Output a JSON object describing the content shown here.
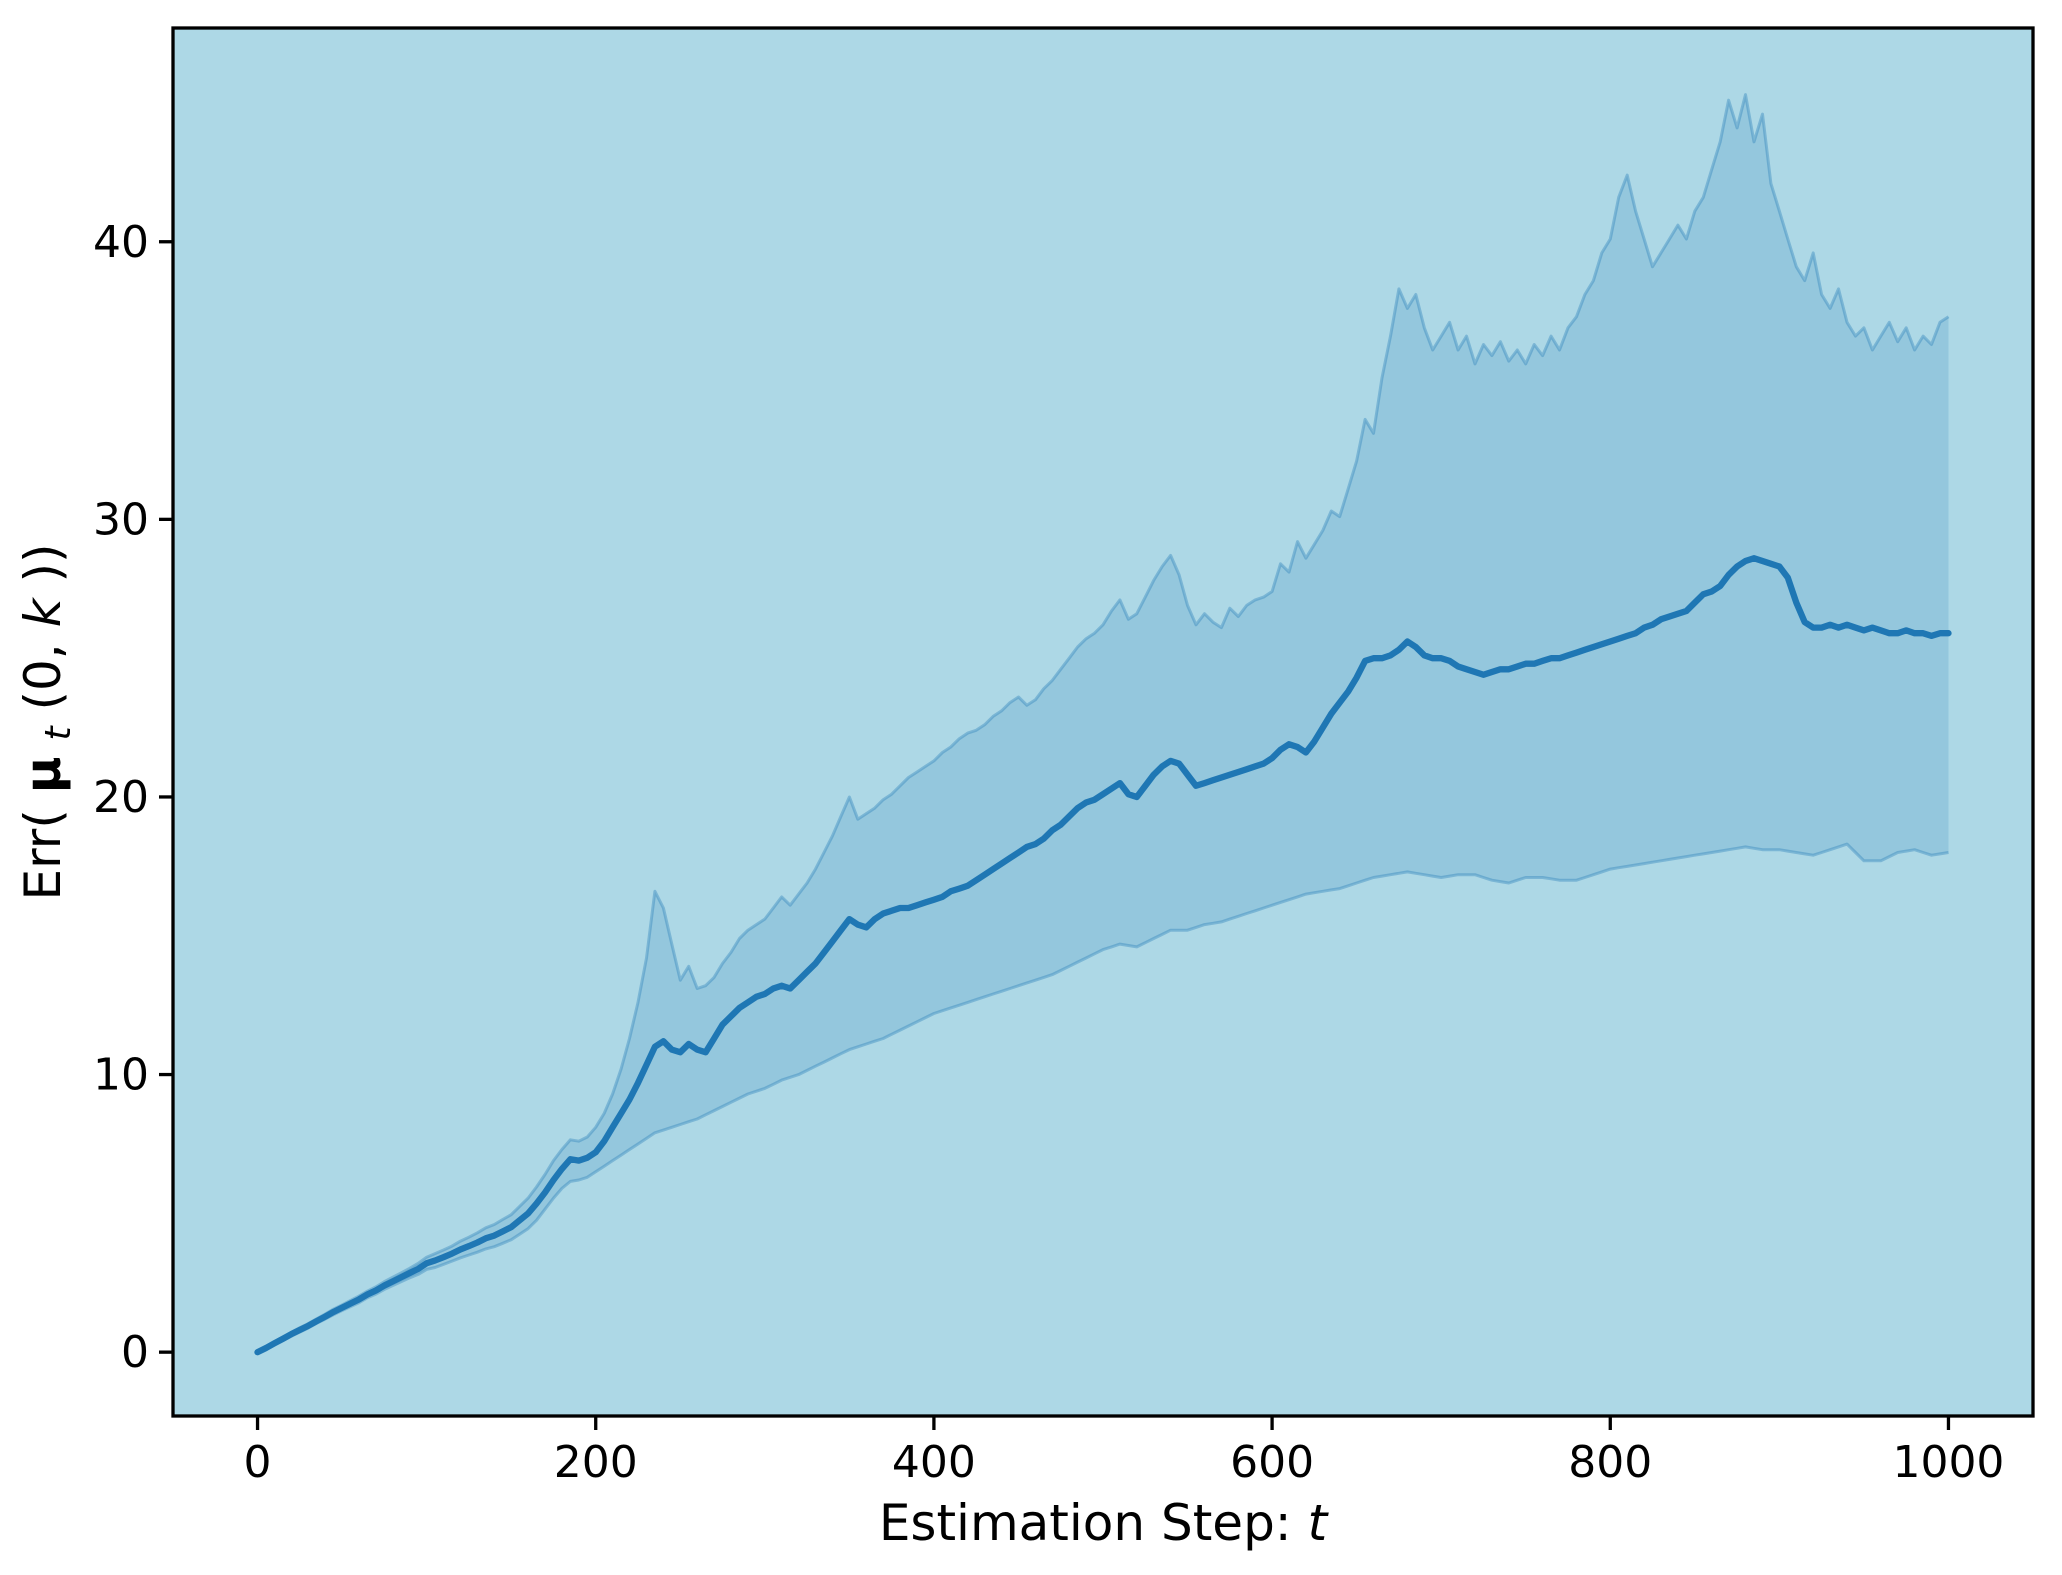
{
  "chart_data": {
    "type": "line",
    "title": "",
    "xlabel_parts": [
      {
        "text": "Estimation Step: ",
        "style": "regular"
      },
      {
        "text": "t",
        "style": "italic"
      }
    ],
    "ylabel_parts": [
      {
        "text": "Err(",
        "style": "regular"
      },
      {
        "text": "μ",
        "style": "bold"
      },
      {
        "text": "t",
        "style": "subscript-italic"
      },
      {
        "text": "(0, ",
        "style": "regular"
      },
      {
        "text": "k",
        "style": "italic"
      },
      {
        "text": "))",
        "style": "regular"
      }
    ],
    "xlim": [
      -50,
      1050
    ],
    "ylim": [
      -2.3,
      47.7
    ],
    "xticks": [
      0,
      200,
      400,
      600,
      800,
      1000
    ],
    "yticks": [
      0,
      10,
      20,
      30,
      40
    ],
    "grid": false,
    "legend": "none",
    "x": [
      0,
      5,
      10,
      15,
      20,
      25,
      30,
      35,
      40,
      45,
      50,
      55,
      60,
      65,
      70,
      75,
      80,
      85,
      90,
      95,
      100,
      105,
      110,
      115,
      120,
      125,
      130,
      135,
      140,
      145,
      150,
      155,
      160,
      165,
      170,
      175,
      180,
      185,
      190,
      195,
      200,
      205,
      210,
      215,
      220,
      225,
      230,
      235,
      240,
      245,
      250,
      255,
      260,
      265,
      270,
      275,
      280,
      285,
      290,
      295,
      300,
      305,
      310,
      315,
      320,
      325,
      330,
      335,
      340,
      345,
      350,
      355,
      360,
      365,
      370,
      375,
      380,
      385,
      390,
      395,
      400,
      405,
      410,
      415,
      420,
      425,
      430,
      435,
      440,
      445,
      450,
      455,
      460,
      465,
      470,
      475,
      480,
      485,
      490,
      495,
      500,
      505,
      510,
      515,
      520,
      525,
      530,
      535,
      540,
      545,
      550,
      555,
      560,
      565,
      570,
      575,
      580,
      585,
      590,
      595,
      600,
      605,
      610,
      615,
      620,
      625,
      630,
      635,
      640,
      645,
      650,
      655,
      660,
      665,
      670,
      675,
      680,
      685,
      690,
      695,
      700,
      705,
      710,
      715,
      720,
      725,
      730,
      735,
      740,
      745,
      750,
      755,
      760,
      765,
      770,
      775,
      780,
      785,
      790,
      795,
      800,
      805,
      810,
      815,
      820,
      825,
      830,
      835,
      840,
      845,
      850,
      855,
      860,
      865,
      870,
      875,
      880,
      885,
      890,
      895,
      900,
      905,
      910,
      915,
      920,
      925,
      930,
      935,
      940,
      945,
      950,
      955,
      960,
      965,
      970,
      975,
      980,
      985,
      990,
      995,
      1000
    ],
    "series": [
      {
        "name": "mean_error",
        "values": [
          0,
          0.15,
          0.32,
          0.48,
          0.65,
          0.8,
          0.95,
          1.12,
          1.28,
          1.45,
          1.6,
          1.75,
          1.9,
          2.08,
          2.22,
          2.4,
          2.55,
          2.7,
          2.85,
          3.0,
          3.2,
          3.3,
          3.42,
          3.55,
          3.7,
          3.82,
          3.95,
          4.1,
          4.2,
          4.35,
          4.5,
          4.75,
          5.0,
          5.35,
          5.75,
          6.2,
          6.6,
          6.95,
          6.9,
          7.0,
          7.2,
          7.6,
          8.1,
          8.6,
          9.1,
          9.7,
          10.35,
          11.0,
          11.2,
          10.9,
          10.8,
          11.1,
          10.9,
          10.8,
          11.3,
          11.8,
          12.1,
          12.4,
          12.6,
          12.8,
          12.9,
          13.1,
          13.2,
          13.1,
          13.4,
          13.7,
          14.0,
          14.4,
          14.8,
          15.2,
          15.6,
          15.4,
          15.3,
          15.6,
          15.8,
          15.9,
          16.0,
          16.0,
          16.1,
          16.2,
          16.3,
          16.4,
          16.6,
          16.7,
          16.8,
          17.0,
          17.2,
          17.4,
          17.6,
          17.8,
          18.0,
          18.2,
          18.3,
          18.5,
          18.8,
          19.0,
          19.3,
          19.6,
          19.8,
          19.9,
          20.1,
          20.3,
          20.5,
          20.1,
          20.0,
          20.4,
          20.8,
          21.1,
          21.3,
          21.2,
          20.8,
          20.4,
          20.5,
          20.6,
          20.7,
          20.8,
          20.9,
          21.0,
          21.1,
          21.2,
          21.4,
          21.7,
          21.9,
          21.8,
          21.6,
          22.0,
          22.5,
          23.0,
          23.4,
          23.8,
          24.3,
          24.9,
          25.0,
          25.0,
          25.1,
          25.3,
          25.6,
          25.4,
          25.1,
          25.0,
          25.0,
          24.9,
          24.7,
          24.6,
          24.5,
          24.4,
          24.5,
          24.6,
          24.6,
          24.7,
          24.8,
          24.8,
          24.9,
          25.0,
          25.0,
          25.1,
          25.2,
          25.3,
          25.4,
          25.5,
          25.6,
          25.7,
          25.8,
          25.9,
          26.1,
          26.2,
          26.4,
          26.5,
          26.6,
          26.7,
          27.0,
          27.3,
          27.4,
          27.6,
          28.0,
          28.3,
          28.5,
          28.6,
          28.5,
          28.4,
          28.3,
          27.9,
          27.0,
          26.3,
          26.1,
          26.1,
          26.2,
          26.1,
          26.2,
          26.1,
          26.0,
          26.1,
          26.0,
          25.9,
          25.9,
          26.0,
          25.9,
          25.9,
          25.8,
          25.9,
          25.9
        ]
      },
      {
        "name": "band_upper",
        "values": [
          0.05,
          0.2,
          0.38,
          0.55,
          0.72,
          0.88,
          1.03,
          1.2,
          1.37,
          1.55,
          1.7,
          1.86,
          2.02,
          2.2,
          2.35,
          2.54,
          2.7,
          2.86,
          3.02,
          3.2,
          3.42,
          3.55,
          3.68,
          3.82,
          4.0,
          4.14,
          4.3,
          4.48,
          4.6,
          4.78,
          4.95,
          5.25,
          5.55,
          5.95,
          6.4,
          6.9,
          7.3,
          7.65,
          7.6,
          7.75,
          8.1,
          8.6,
          9.3,
          10.2,
          11.3,
          12.6,
          14.2,
          16.6,
          16.0,
          14.7,
          13.4,
          13.9,
          13.1,
          13.2,
          13.5,
          14.0,
          14.4,
          14.9,
          15.2,
          15.4,
          15.6,
          16.0,
          16.4,
          16.1,
          16.5,
          16.9,
          17.4,
          18.0,
          18.6,
          19.3,
          20.0,
          19.2,
          19.4,
          19.6,
          19.9,
          20.1,
          20.4,
          20.7,
          20.9,
          21.1,
          21.3,
          21.6,
          21.8,
          22.1,
          22.3,
          22.4,
          22.6,
          22.9,
          23.1,
          23.4,
          23.6,
          23.3,
          23.5,
          23.9,
          24.2,
          24.6,
          25.0,
          25.4,
          25.7,
          25.9,
          26.2,
          26.7,
          27.1,
          26.4,
          26.6,
          27.2,
          27.8,
          28.3,
          28.7,
          28.0,
          26.9,
          26.2,
          26.6,
          26.3,
          26.1,
          26.8,
          26.5,
          26.9,
          27.1,
          27.2,
          27.4,
          28.4,
          28.1,
          29.2,
          28.6,
          29.1,
          29.6,
          30.3,
          30.1,
          31.1,
          32.1,
          33.6,
          33.1,
          35.1,
          36.6,
          38.3,
          37.6,
          38.1,
          36.9,
          36.1,
          36.6,
          37.1,
          36.1,
          36.6,
          35.6,
          36.3,
          35.9,
          36.4,
          35.7,
          36.1,
          35.6,
          36.3,
          35.9,
          36.6,
          36.1,
          36.9,
          37.3,
          38.1,
          38.6,
          39.6,
          40.1,
          41.6,
          42.4,
          41.1,
          40.1,
          39.1,
          39.6,
          40.1,
          40.6,
          40.1,
          41.1,
          41.6,
          42.6,
          43.6,
          45.1,
          44.1,
          45.3,
          43.6,
          44.6,
          42.1,
          41.1,
          40.1,
          39.1,
          38.6,
          39.6,
          38.1,
          37.6,
          38.3,
          37.1,
          36.6,
          36.9,
          36.1,
          36.6,
          37.1,
          36.4,
          36.9,
          36.1,
          36.6,
          36.3,
          37.1,
          37.3
        ]
      },
      {
        "name": "band_lower",
        "values": [
          -0.05,
          0.1,
          0.27,
          0.42,
          0.58,
          0.72,
          0.87,
          1.04,
          1.19,
          1.35,
          1.5,
          1.64,
          1.78,
          1.96,
          2.09,
          2.26,
          2.4,
          2.54,
          2.68,
          2.8,
          2.98,
          3.05,
          3.16,
          3.28,
          3.4,
          3.5,
          3.6,
          3.72,
          3.8,
          3.92,
          4.05,
          4.25,
          4.45,
          4.75,
          5.15,
          5.55,
          5.9,
          6.15,
          6.2,
          6.3,
          6.5,
          6.7,
          6.9,
          7.1,
          7.3,
          7.5,
          7.7,
          7.9,
          8.0,
          8.1,
          8.2,
          8.3,
          8.4,
          8.55,
          8.7,
          8.85,
          9.0,
          9.15,
          9.3,
          9.4,
          9.5,
          9.65,
          9.8,
          9.9,
          10.0,
          10.15,
          10.3,
          10.45,
          10.6,
          10.75,
          10.9,
          11.0,
          11.1,
          11.2,
          11.3,
          11.45,
          11.6,
          11.75,
          11.9,
          12.05,
          12.2,
          12.3,
          12.4,
          12.5,
          12.6,
          12.7,
          12.8,
          12.9,
          13.0,
          13.1,
          13.2,
          13.3,
          13.4,
          13.5,
          13.6,
          13.75,
          13.9,
          14.05,
          14.2,
          14.35,
          14.5,
          14.6,
          14.7,
          14.65,
          14.6,
          14.75,
          14.9,
          15.05,
          15.2,
          15.2,
          15.2,
          15.3,
          15.4,
          15.45,
          15.5,
          15.6,
          15.7,
          15.8,
          15.9,
          16.0,
          16.1,
          16.2,
          16.3,
          16.4,
          16.5,
          16.55,
          16.6,
          16.65,
          16.7,
          16.8,
          16.9,
          17.0,
          17.1,
          17.15,
          17.2,
          17.25,
          17.3,
          17.25,
          17.2,
          17.15,
          17.1,
          17.15,
          17.2,
          17.2,
          17.2,
          17.1,
          17.0,
          16.95,
          16.9,
          17.0,
          17.1,
          17.1,
          17.1,
          17.05,
          17.0,
          17.0,
          17.0,
          17.1,
          17.2,
          17.3,
          17.4,
          17.45,
          17.5,
          17.55,
          17.6,
          17.65,
          17.7,
          17.75,
          17.8,
          17.85,
          17.9,
          17.95,
          18.0,
          18.05,
          18.1,
          18.15,
          18.2,
          18.15,
          18.1,
          18.1,
          18.1,
          18.05,
          18.0,
          17.95,
          17.9,
          18.0,
          18.1,
          18.2,
          18.3,
          18.0,
          17.7,
          17.7,
          17.7,
          17.85,
          18.0,
          18.05,
          18.1,
          18.0,
          17.9,
          17.95,
          18.0
        ]
      }
    ],
    "colors": {
      "figure_background": "#ffffff",
      "axes_background": "#add8e6",
      "line": "#1f77b4",
      "band_fill": "#1f77b4",
      "band_fill_opacity": 0.17,
      "band_edge": "#1f77b4",
      "band_edge_opacity": 0.35,
      "spine": "#000000",
      "text": "#000000"
    }
  }
}
